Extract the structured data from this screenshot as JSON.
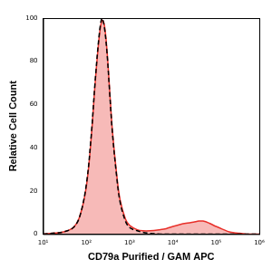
{
  "chart_data": {
    "type": "line",
    "x_label": "CD79a Purified / GAM APC",
    "y_label": "Relative Cell Count",
    "log": "x",
    "grid": false,
    "xlim": [
      10,
      1000000
    ],
    "xticks": [
      {
        "value": 10,
        "label": "10¹"
      },
      {
        "value": 100,
        "label": "10²"
      },
      {
        "value": 1000,
        "label": "10³"
      },
      {
        "value": 10000,
        "label": "10⁴"
      },
      {
        "value": 100000,
        "label": "10⁵"
      },
      {
        "value": 1000000,
        "label": "10⁶"
      }
    ],
    "ylim": [
      0,
      100
    ],
    "yticks": [
      0,
      20,
      40,
      60,
      80,
      100
    ],
    "x": [
      10,
      20,
      30,
      50,
      70,
      100,
      130,
      160,
      200,
      230,
      260,
      300,
      350,
      400,
      500,
      600,
      800,
      1000,
      1500,
      2000,
      3000,
      5000,
      7000,
      10000,
      15000,
      20000,
      30000,
      40000,
      50000,
      70000,
      100000,
      150000,
      200000,
      300000,
      500000,
      1000000
    ],
    "series": [
      {
        "type": "area",
        "color": "#e8302a",
        "line_style": "solid",
        "values": [
          0,
          0.5,
          1,
          3,
          8,
          22,
          45,
          70,
          92,
          99,
          97,
          85,
          65,
          48,
          28,
          16,
          7,
          4,
          2,
          1.5,
          1.5,
          2,
          2.5,
          3.5,
          4.5,
          5,
          5.5,
          6,
          6,
          5,
          3.5,
          2,
          1,
          0.5,
          0,
          0
        ]
      },
      {
        "type": "line",
        "color": "#000000",
        "line_style": "dashed",
        "values": [
          0,
          0.5,
          1,
          3,
          8,
          23,
          46,
          71,
          93,
          100,
          96,
          84,
          64,
          47,
          27,
          15,
          6,
          3,
          1.5,
          0.8,
          0.3,
          0,
          0,
          0,
          0,
          0,
          0,
          0,
          0,
          0,
          0,
          0,
          0,
          0,
          0,
          0
        ]
      }
    ]
  }
}
